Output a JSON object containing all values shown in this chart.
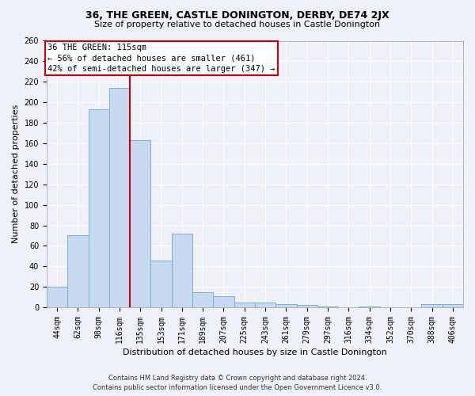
{
  "title": "36, THE GREEN, CASTLE DONINGTON, DERBY, DE74 2JX",
  "subtitle": "Size of property relative to detached houses in Castle Donington",
  "xlabel": "Distribution of detached houses by size in Castle Donington",
  "ylabel": "Number of detached properties",
  "categories": [
    "44sqm",
    "62sqm",
    "98sqm",
    "116sqm",
    "135sqm",
    "153sqm",
    "171sqm",
    "189sqm",
    "207sqm",
    "225sqm",
    "243sqm",
    "261sqm",
    "279sqm",
    "297sqm",
    "316sqm",
    "334sqm",
    "352sqm",
    "370sqm",
    "388sqm",
    "406sqm"
  ],
  "values": [
    20,
    70,
    193,
    214,
    163,
    46,
    72,
    15,
    11,
    5,
    5,
    3,
    2,
    1,
    0,
    1,
    0,
    0,
    3,
    3
  ],
  "bar_color": "#c6d9f0",
  "bar_edge_color": "#7bafd4",
  "vline_color": "#cc0000",
  "box_text_line1": "36 THE GREEN: 115sqm",
  "box_text_line2": "← 56% of detached houses are smaller (461)",
  "box_text_line3": "42% of semi-detached houses are larger (347) →",
  "box_color": "#ffffff",
  "box_edge_color": "#cc0000",
  "background_color": "#eef2f8",
  "grid_color": "#ffffff",
  "footer_line1": "Contains HM Land Registry data © Crown copyright and database right 2024.",
  "footer_line2": "Contains public sector information licensed under the Open Government Licence v3.0.",
  "ylim": [
    0,
    260
  ],
  "yticks": [
    0,
    20,
    40,
    60,
    80,
    100,
    120,
    140,
    160,
    180,
    200,
    220,
    240,
    260
  ],
  "title_fontsize": 9,
  "subtitle_fontsize": 8,
  "ylabel_fontsize": 8,
  "xlabel_fontsize": 8,
  "tick_fontsize": 7,
  "footer_fontsize": 6,
  "annotation_fontsize": 7.5
}
